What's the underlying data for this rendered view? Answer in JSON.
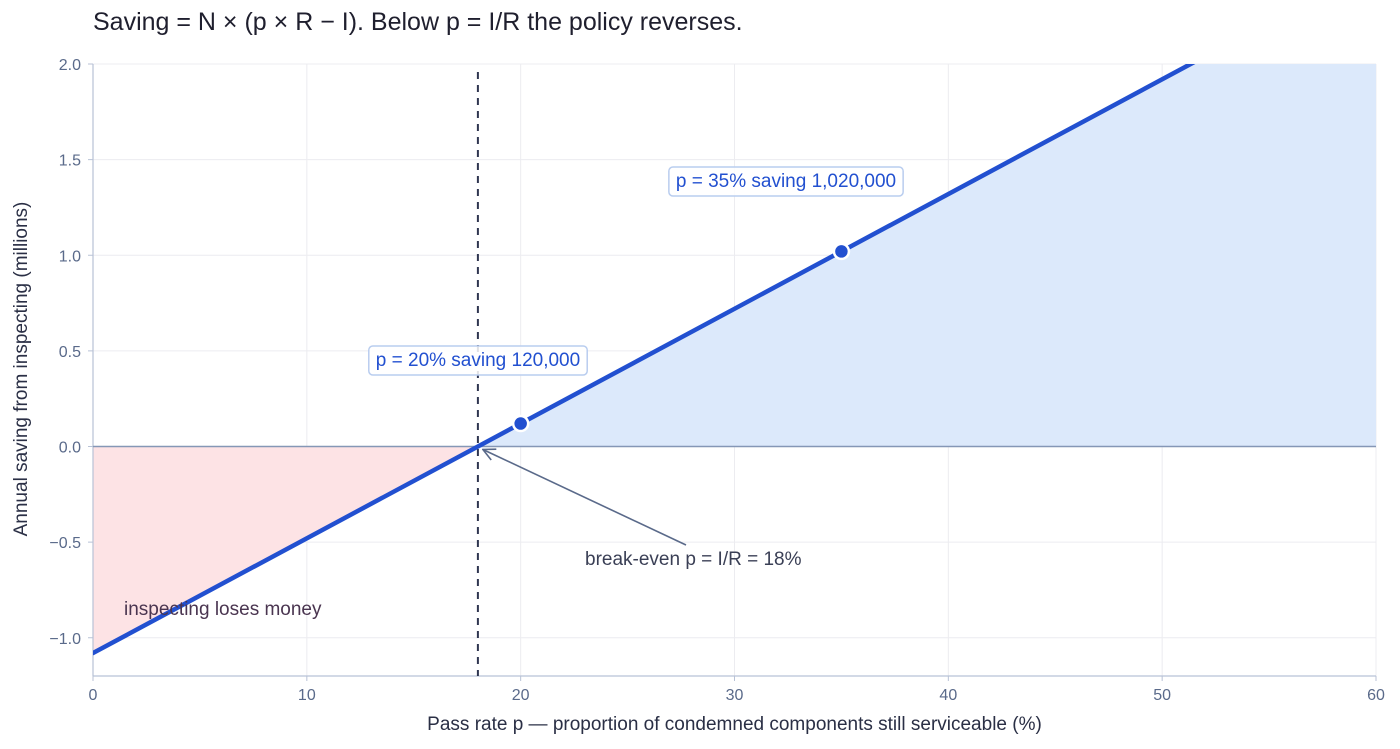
{
  "title": "Saving = N × (p × R − I).  Below p = I/R the policy reverses.",
  "chart_data": {
    "type": "line",
    "xlabel": "Pass rate  p  — proportion of condemned components still serviceable (%)",
    "ylabel": "Annual saving from inspecting (millions)",
    "xlim": [
      0,
      60
    ],
    "ylim": [
      -1.2,
      2.0
    ],
    "x_ticks": [
      0,
      10,
      20,
      30,
      40,
      50,
      60
    ],
    "x_tick_labels": [
      "0",
      "10",
      "20",
      "30",
      "40",
      "50",
      "60"
    ],
    "y_ticks": [
      -1.0,
      -0.5,
      0.0,
      0.5,
      1.0,
      1.5,
      2.0
    ],
    "y_tick_labels": [
      "−1.0",
      "−0.5",
      "0.0",
      "0.5",
      "1.0",
      "1.5",
      "2.0"
    ],
    "grid": true,
    "series": [
      {
        "x": [
          0,
          60
        ],
        "y": [
          -1.08,
          2.52
        ],
        "color": "#2250d0"
      }
    ],
    "break_even_x": 18,
    "points": [
      {
        "x": 20,
        "y": 0.12,
        "label": "p = 20%   saving 120,000"
      },
      {
        "x": 35,
        "y": 1.02,
        "label": "p = 35%   saving 1,020,000"
      }
    ],
    "annotations": {
      "break_even": "break-even   p = I/R = 18%",
      "loss_region": "inspecting loses money"
    },
    "colors": {
      "line": "#2250d0",
      "gain_fill": "#dce9fb",
      "loss_fill": "#fde3e5",
      "break_even_line": "#2f3650",
      "arrow": "#5a6a8a"
    }
  }
}
